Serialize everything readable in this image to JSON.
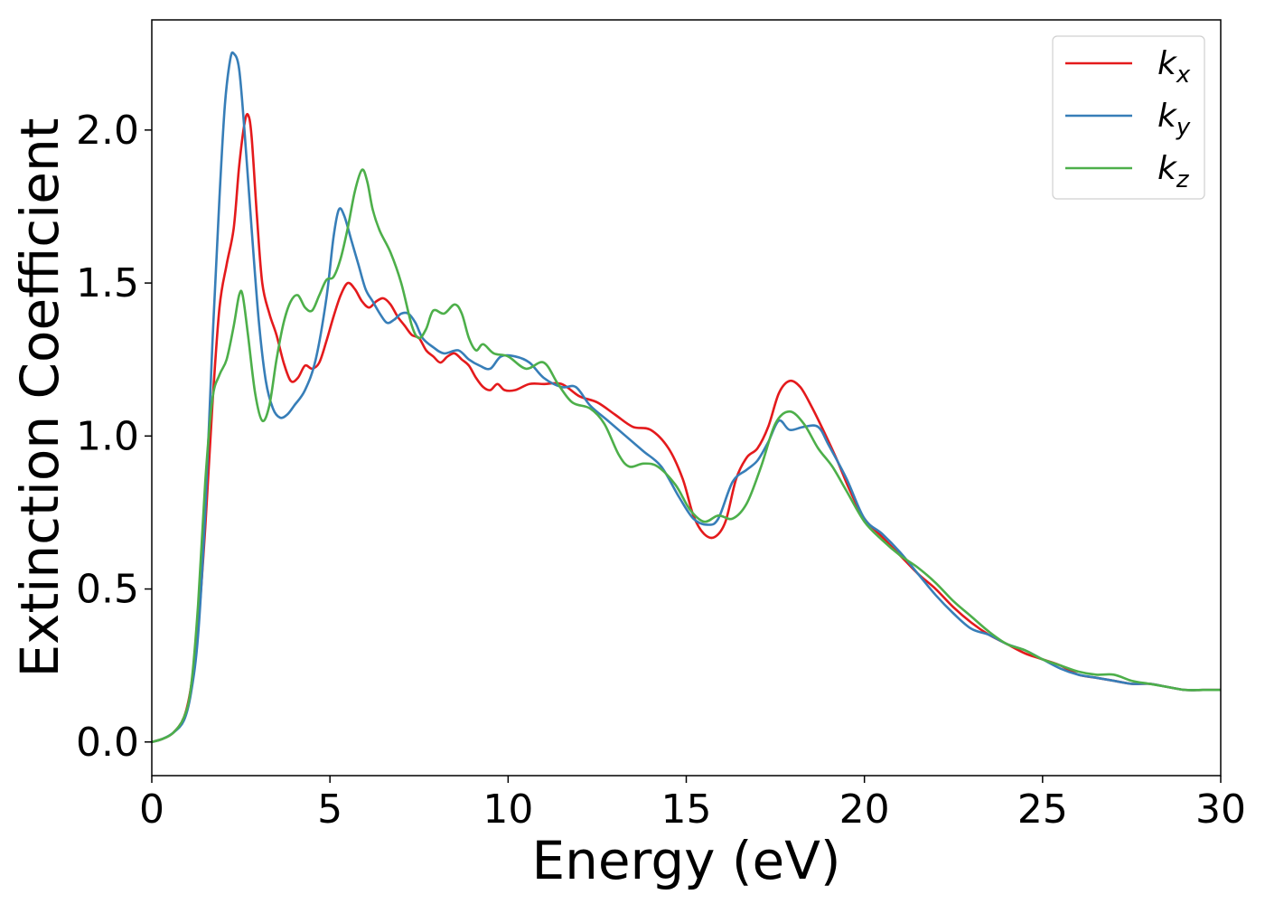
{
  "chart_data": {
    "type": "line",
    "title": "",
    "xlabel": "Energy (eV)",
    "ylabel": "Extinction Coefficient",
    "xlim": [
      0,
      30
    ],
    "ylim": [
      -0.11,
      2.36
    ],
    "xticks": [
      0,
      5,
      10,
      15,
      20,
      25,
      30
    ],
    "xtick_labels": [
      "0",
      "5",
      "10",
      "15",
      "20",
      "25",
      "30"
    ],
    "yticks": [
      0.0,
      0.5,
      1.0,
      1.5,
      2.0
    ],
    "ytick_labels": [
      "0.0",
      "0.5",
      "1.0",
      "1.5",
      "2.0"
    ],
    "grid": false,
    "legend_position": "top-right",
    "series": [
      {
        "name": "k",
        "subscript": "x",
        "color": "#e41a1c",
        "points": [
          [
            0,
            0.0
          ],
          [
            0.3,
            0.01
          ],
          [
            0.6,
            0.03
          ],
          [
            0.9,
            0.08
          ],
          [
            1.1,
            0.18
          ],
          [
            1.3,
            0.38
          ],
          [
            1.5,
            0.7
          ],
          [
            1.7,
            1.1
          ],
          [
            1.9,
            1.42
          ],
          [
            2.1,
            1.56
          ],
          [
            2.3,
            1.68
          ],
          [
            2.45,
            1.88
          ],
          [
            2.6,
            2.02
          ],
          [
            2.7,
            2.05
          ],
          [
            2.8,
            1.98
          ],
          [
            2.95,
            1.72
          ],
          [
            3.1,
            1.5
          ],
          [
            3.3,
            1.4
          ],
          [
            3.5,
            1.33
          ],
          [
            3.7,
            1.24
          ],
          [
            3.9,
            1.18
          ],
          [
            4.1,
            1.19
          ],
          [
            4.3,
            1.23
          ],
          [
            4.5,
            1.22
          ],
          [
            4.7,
            1.24
          ],
          [
            4.9,
            1.31
          ],
          [
            5.1,
            1.39
          ],
          [
            5.3,
            1.46
          ],
          [
            5.5,
            1.5
          ],
          [
            5.7,
            1.48
          ],
          [
            5.9,
            1.44
          ],
          [
            6.1,
            1.42
          ],
          [
            6.3,
            1.44
          ],
          [
            6.5,
            1.45
          ],
          [
            6.7,
            1.43
          ],
          [
            6.9,
            1.39
          ],
          [
            7.1,
            1.36
          ],
          [
            7.3,
            1.33
          ],
          [
            7.5,
            1.32
          ],
          [
            7.7,
            1.28
          ],
          [
            7.9,
            1.26
          ],
          [
            8.1,
            1.24
          ],
          [
            8.3,
            1.26
          ],
          [
            8.5,
            1.27
          ],
          [
            8.7,
            1.25
          ],
          [
            8.9,
            1.23
          ],
          [
            9.1,
            1.19
          ],
          [
            9.3,
            1.16
          ],
          [
            9.5,
            1.15
          ],
          [
            9.7,
            1.17
          ],
          [
            9.9,
            1.15
          ],
          [
            10.2,
            1.15
          ],
          [
            10.6,
            1.17
          ],
          [
            11,
            1.17
          ],
          [
            11.5,
            1.17
          ],
          [
            12,
            1.13
          ],
          [
            12.5,
            1.11
          ],
          [
            13,
            1.07
          ],
          [
            13.5,
            1.03
          ],
          [
            14,
            1.02
          ],
          [
            14.5,
            0.96
          ],
          [
            14.9,
            0.86
          ],
          [
            15.2,
            0.74
          ],
          [
            15.5,
            0.68
          ],
          [
            15.8,
            0.67
          ],
          [
            16.1,
            0.72
          ],
          [
            16.4,
            0.86
          ],
          [
            16.7,
            0.93
          ],
          [
            17,
            0.96
          ],
          [
            17.3,
            1.03
          ],
          [
            17.6,
            1.14
          ],
          [
            17.9,
            1.18
          ],
          [
            18.2,
            1.16
          ],
          [
            18.5,
            1.1
          ],
          [
            18.8,
            1.03
          ],
          [
            19.2,
            0.93
          ],
          [
            19.6,
            0.82
          ],
          [
            20,
            0.73
          ],
          [
            20.5,
            0.67
          ],
          [
            21,
            0.61
          ],
          [
            21.5,
            0.55
          ],
          [
            22,
            0.5
          ],
          [
            22.5,
            0.44
          ],
          [
            23,
            0.39
          ],
          [
            23.5,
            0.35
          ],
          [
            24,
            0.32
          ],
          [
            24.5,
            0.29
          ],
          [
            25,
            0.27
          ],
          [
            25.5,
            0.25
          ],
          [
            26,
            0.22
          ],
          [
            26.5,
            0.21
          ],
          [
            27,
            0.2
          ],
          [
            27.5,
            0.19
          ],
          [
            28,
            0.19
          ],
          [
            28.5,
            0.18
          ],
          [
            29,
            0.17
          ],
          [
            29.5,
            0.17
          ],
          [
            30,
            0.17
          ]
        ]
      },
      {
        "name": "k",
        "subscript": "y",
        "color": "#377eb8",
        "points": [
          [
            0,
            0.0
          ],
          [
            0.3,
            0.01
          ],
          [
            0.6,
            0.03
          ],
          [
            0.9,
            0.07
          ],
          [
            1.1,
            0.16
          ],
          [
            1.3,
            0.35
          ],
          [
            1.5,
            0.75
          ],
          [
            1.7,
            1.3
          ],
          [
            1.9,
            1.78
          ],
          [
            2.05,
            2.08
          ],
          [
            2.2,
            2.23
          ],
          [
            2.3,
            2.25
          ],
          [
            2.45,
            2.2
          ],
          [
            2.6,
            2.0
          ],
          [
            2.8,
            1.68
          ],
          [
            3.0,
            1.38
          ],
          [
            3.2,
            1.18
          ],
          [
            3.4,
            1.09
          ],
          [
            3.6,
            1.06
          ],
          [
            3.8,
            1.07
          ],
          [
            4.0,
            1.1
          ],
          [
            4.3,
            1.15
          ],
          [
            4.6,
            1.25
          ],
          [
            4.9,
            1.45
          ],
          [
            5.1,
            1.65
          ],
          [
            5.25,
            1.74
          ],
          [
            5.4,
            1.72
          ],
          [
            5.6,
            1.64
          ],
          [
            5.8,
            1.56
          ],
          [
            6.0,
            1.48
          ],
          [
            6.2,
            1.44
          ],
          [
            6.4,
            1.4
          ],
          [
            6.6,
            1.37
          ],
          [
            6.8,
            1.38
          ],
          [
            7.0,
            1.4
          ],
          [
            7.2,
            1.4
          ],
          [
            7.4,
            1.37
          ],
          [
            7.6,
            1.32
          ],
          [
            7.9,
            1.29
          ],
          [
            8.2,
            1.27
          ],
          [
            8.6,
            1.28
          ],
          [
            8.9,
            1.25
          ],
          [
            9.2,
            1.23
          ],
          [
            9.5,
            1.22
          ],
          [
            9.8,
            1.26
          ],
          [
            10.2,
            1.26
          ],
          [
            10.6,
            1.24
          ],
          [
            11,
            1.19
          ],
          [
            11.5,
            1.16
          ],
          [
            11.9,
            1.16
          ],
          [
            12.3,
            1.1
          ],
          [
            12.8,
            1.05
          ],
          [
            13.3,
            1.0
          ],
          [
            13.8,
            0.95
          ],
          [
            14.3,
            0.9
          ],
          [
            14.8,
            0.8
          ],
          [
            15.2,
            0.73
          ],
          [
            15.6,
            0.71
          ],
          [
            15.9,
            0.73
          ],
          [
            16.3,
            0.85
          ],
          [
            16.7,
            0.89
          ],
          [
            17,
            0.92
          ],
          [
            17.3,
            0.98
          ],
          [
            17.6,
            1.05
          ],
          [
            17.9,
            1.02
          ],
          [
            18.3,
            1.03
          ],
          [
            18.7,
            1.03
          ],
          [
            19,
            0.97
          ],
          [
            19.5,
            0.86
          ],
          [
            20,
            0.73
          ],
          [
            20.5,
            0.68
          ],
          [
            21,
            0.62
          ],
          [
            21.5,
            0.55
          ],
          [
            22,
            0.48
          ],
          [
            22.5,
            0.42
          ],
          [
            23,
            0.37
          ],
          [
            23.5,
            0.35
          ],
          [
            24,
            0.32
          ],
          [
            24.5,
            0.3
          ],
          [
            25,
            0.27
          ],
          [
            25.5,
            0.24
          ],
          [
            26,
            0.22
          ],
          [
            26.5,
            0.21
          ],
          [
            27,
            0.2
          ],
          [
            27.5,
            0.19
          ],
          [
            28,
            0.19
          ],
          [
            28.5,
            0.18
          ],
          [
            29,
            0.17
          ],
          [
            29.5,
            0.17
          ],
          [
            30,
            0.17
          ]
        ]
      },
      {
        "name": "k",
        "subscript": "z",
        "color": "#4daf4a",
        "points": [
          [
            0,
            0.0
          ],
          [
            0.3,
            0.01
          ],
          [
            0.6,
            0.03
          ],
          [
            0.9,
            0.08
          ],
          [
            1.1,
            0.18
          ],
          [
            1.3,
            0.45
          ],
          [
            1.5,
            0.85
          ],
          [
            1.7,
            1.12
          ],
          [
            1.9,
            1.2
          ],
          [
            2.1,
            1.25
          ],
          [
            2.3,
            1.36
          ],
          [
            2.45,
            1.46
          ],
          [
            2.55,
            1.46
          ],
          [
            2.7,
            1.33
          ],
          [
            2.9,
            1.14
          ],
          [
            3.1,
            1.05
          ],
          [
            3.3,
            1.1
          ],
          [
            3.5,
            1.25
          ],
          [
            3.7,
            1.37
          ],
          [
            3.9,
            1.44
          ],
          [
            4.1,
            1.46
          ],
          [
            4.3,
            1.42
          ],
          [
            4.5,
            1.41
          ],
          [
            4.7,
            1.46
          ],
          [
            4.9,
            1.51
          ],
          [
            5.1,
            1.52
          ],
          [
            5.3,
            1.58
          ],
          [
            5.5,
            1.68
          ],
          [
            5.7,
            1.8
          ],
          [
            5.9,
            1.87
          ],
          [
            6.05,
            1.83
          ],
          [
            6.2,
            1.74
          ],
          [
            6.4,
            1.67
          ],
          [
            6.7,
            1.6
          ],
          [
            7.0,
            1.5
          ],
          [
            7.3,
            1.36
          ],
          [
            7.5,
            1.32
          ],
          [
            7.7,
            1.35
          ],
          [
            7.9,
            1.41
          ],
          [
            8.2,
            1.4
          ],
          [
            8.5,
            1.43
          ],
          [
            8.7,
            1.4
          ],
          [
            8.9,
            1.32
          ],
          [
            9.1,
            1.28
          ],
          [
            9.3,
            1.3
          ],
          [
            9.6,
            1.27
          ],
          [
            10,
            1.26
          ],
          [
            10.5,
            1.22
          ],
          [
            11,
            1.24
          ],
          [
            11.4,
            1.17
          ],
          [
            11.8,
            1.11
          ],
          [
            12.3,
            1.09
          ],
          [
            12.7,
            1.04
          ],
          [
            13.1,
            0.94
          ],
          [
            13.4,
            0.9
          ],
          [
            13.8,
            0.91
          ],
          [
            14.2,
            0.9
          ],
          [
            14.7,
            0.84
          ],
          [
            15.1,
            0.76
          ],
          [
            15.5,
            0.72
          ],
          [
            15.9,
            0.74
          ],
          [
            16.3,
            0.73
          ],
          [
            16.7,
            0.78
          ],
          [
            17.1,
            0.9
          ],
          [
            17.5,
            1.04
          ],
          [
            17.9,
            1.08
          ],
          [
            18.3,
            1.04
          ],
          [
            18.7,
            0.96
          ],
          [
            19.1,
            0.9
          ],
          [
            19.5,
            0.82
          ],
          [
            20,
            0.72
          ],
          [
            20.5,
            0.66
          ],
          [
            21,
            0.61
          ],
          [
            21.5,
            0.57
          ],
          [
            22,
            0.52
          ],
          [
            22.5,
            0.46
          ],
          [
            23,
            0.41
          ],
          [
            23.5,
            0.36
          ],
          [
            24,
            0.32
          ],
          [
            24.5,
            0.3
          ],
          [
            25,
            0.27
          ],
          [
            25.5,
            0.25
          ],
          [
            26,
            0.23
          ],
          [
            26.5,
            0.22
          ],
          [
            27,
            0.22
          ],
          [
            27.5,
            0.2
          ],
          [
            28,
            0.19
          ],
          [
            28.5,
            0.18
          ],
          [
            29,
            0.17
          ],
          [
            29.5,
            0.17
          ],
          [
            30,
            0.17
          ]
        ]
      }
    ]
  }
}
